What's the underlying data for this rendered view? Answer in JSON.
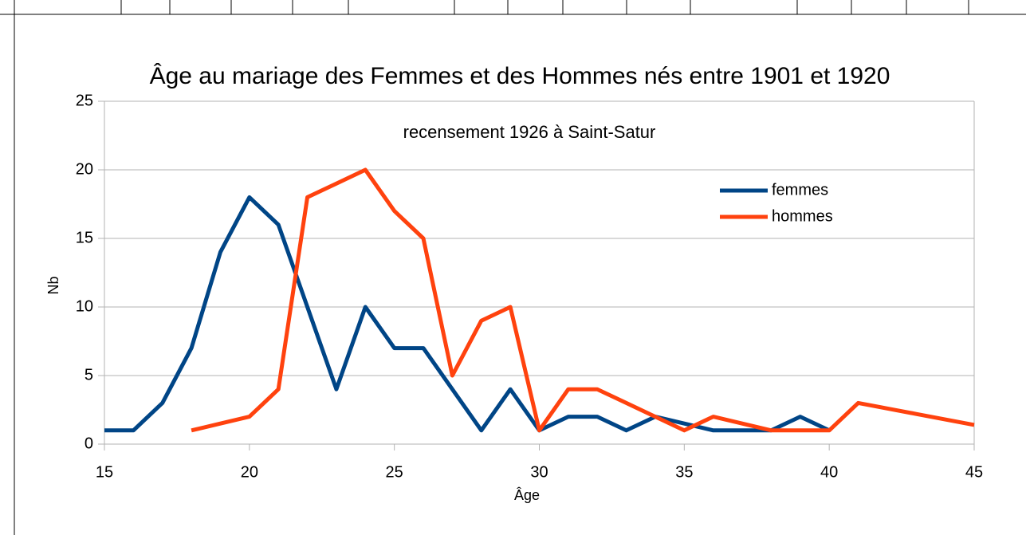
{
  "chart_data": {
    "type": "line",
    "title": "Âge au mariage des Femmes et des Hommes nés entre 1901 et 1920",
    "subtitle": "recensement 1926 à Saint-Satur",
    "x_label": "Âge",
    "y_label": "Nb",
    "series": [
      {
        "name": "femmes",
        "color": "#004586",
        "x": [
          15,
          16,
          17,
          18,
          19,
          20,
          21,
          22,
          23,
          24,
          25,
          26,
          27,
          28,
          29,
          30,
          31,
          32,
          33,
          34,
          35,
          36,
          37,
          38,
          39,
          40
        ],
        "values": [
          1,
          1,
          3,
          7,
          14,
          18,
          16,
          10,
          4,
          10,
          7,
          7,
          4,
          1,
          4,
          1,
          2,
          2,
          1,
          2,
          1.5,
          1,
          1,
          1,
          2,
          1
        ]
      },
      {
        "name": "hommes",
        "color": "#ff420e",
        "x": [
          18,
          19,
          20,
          21,
          22,
          23,
          24,
          25,
          26,
          27,
          28,
          29,
          30,
          31,
          32,
          33,
          34,
          35,
          36,
          37,
          38,
          39,
          40,
          41,
          42,
          43,
          44,
          45
        ],
        "values": [
          1,
          1.5,
          2,
          4,
          18,
          19,
          20,
          17,
          15,
          5,
          9,
          10,
          1,
          4,
          4,
          3,
          2,
          1,
          2,
          1.5,
          1,
          1,
          1,
          3,
          2.6,
          2.2,
          1.8,
          1.4
        ]
      }
    ],
    "xlim": [
      15,
      45
    ],
    "xticks": [
      15,
      20,
      25,
      30,
      35,
      40,
      45
    ],
    "ylim": [
      0,
      25
    ],
    "yticks": [
      0,
      5,
      10,
      15,
      20,
      25
    ],
    "grid": true,
    "legend": "upper right"
  }
}
